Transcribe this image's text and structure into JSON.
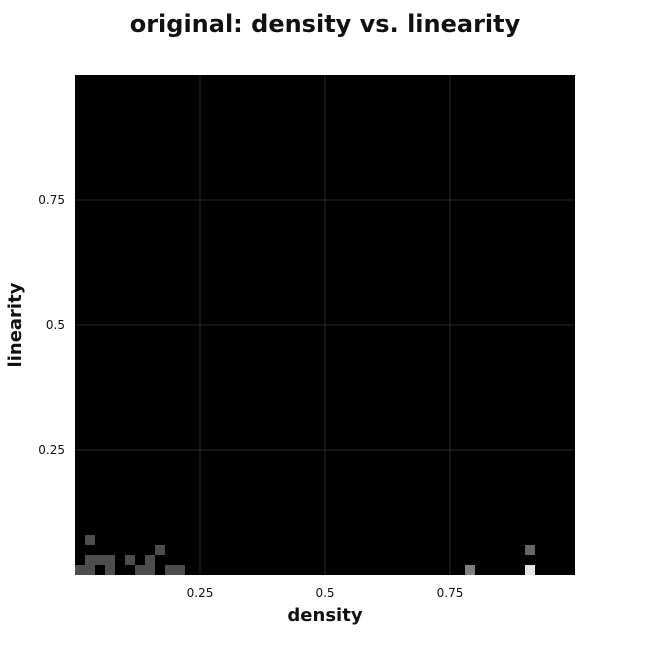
{
  "chart_data": {
    "type": "heatmap",
    "title": "original: density vs. linearity",
    "xlabel": "density",
    "ylabel": "linearity",
    "xlim": [
      0,
      1
    ],
    "ylim": [
      0,
      1
    ],
    "xticks": [
      "0.25",
      "0.5",
      "0.75"
    ],
    "yticks": [
      "0.25",
      "0.5",
      "0.75"
    ],
    "grid": true,
    "bin_size": 0.02,
    "colormap": "black-to-white",
    "max_value": 1.0,
    "cells": [
      {
        "x": 0.0,
        "y": 0.0,
        "value": 0.3
      },
      {
        "x": 0.02,
        "y": 0.0,
        "value": 0.3
      },
      {
        "x": 0.02,
        "y": 0.02,
        "value": 0.3
      },
      {
        "x": 0.02,
        "y": 0.06,
        "value": 0.3
      },
      {
        "x": 0.04,
        "y": 0.02,
        "value": 0.3
      },
      {
        "x": 0.06,
        "y": 0.0,
        "value": 0.3
      },
      {
        "x": 0.06,
        "y": 0.02,
        "value": 0.3
      },
      {
        "x": 0.1,
        "y": 0.02,
        "value": 0.3
      },
      {
        "x": 0.12,
        "y": 0.0,
        "value": 0.3
      },
      {
        "x": 0.14,
        "y": 0.0,
        "value": 0.3
      },
      {
        "x": 0.14,
        "y": 0.02,
        "value": 0.3
      },
      {
        "x": 0.16,
        "y": 0.04,
        "value": 0.3
      },
      {
        "x": 0.18,
        "y": 0.0,
        "value": 0.3
      },
      {
        "x": 0.2,
        "y": 0.0,
        "value": 0.3
      },
      {
        "x": 0.78,
        "y": 0.0,
        "value": 0.5
      },
      {
        "x": 0.9,
        "y": 0.04,
        "value": 0.4
      },
      {
        "x": 0.9,
        "y": 0.0,
        "value": 0.9
      }
    ]
  }
}
